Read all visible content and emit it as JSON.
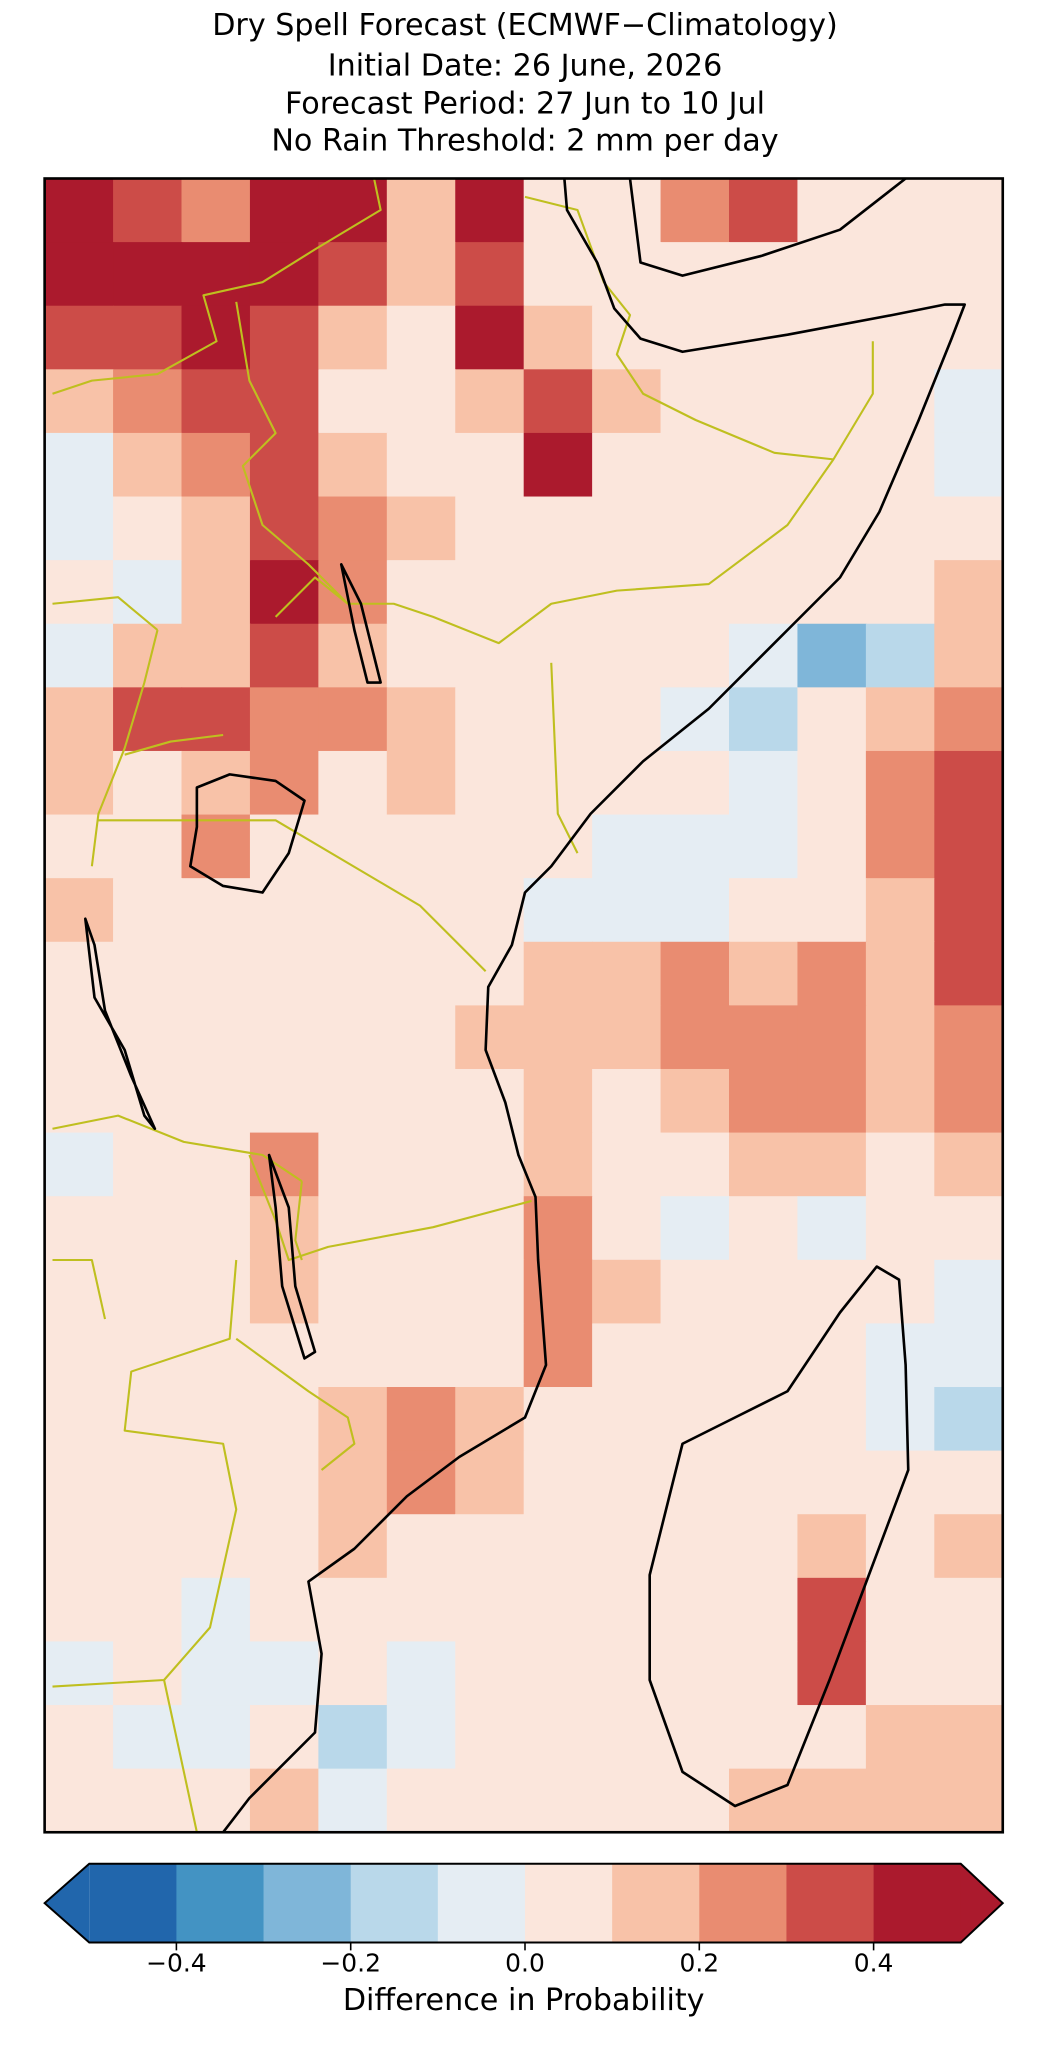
{
  "title": [
    "Dry Spell Forecast (ECMWF−Climatology)",
    "Initial Date: 26 June, 2026",
    "Forecast Period: 27 Jun to 10 Jul",
    "No Rain Threshold: 2 mm per day"
  ],
  "map": {
    "grid": [
      [
        0.45,
        0.35,
        0.25,
        0.45,
        0.45,
        0.15,
        0.45,
        0.05,
        0.05,
        0.25,
        0.35,
        0.05,
        0.05,
        0.05
      ],
      [
        0.45,
        0.45,
        0.45,
        0.45,
        0.35,
        0.15,
        0.35,
        0.05,
        0.05,
        0.05,
        0.05,
        0.05,
        0.05,
        0.05
      ],
      [
        0.35,
        0.35,
        0.45,
        0.35,
        0.15,
        0.05,
        0.45,
        0.15,
        0.05,
        0.05,
        0.05,
        0.05,
        0.05,
        0.05
      ],
      [
        0.15,
        0.25,
        0.35,
        0.35,
        0.05,
        0.05,
        0.15,
        0.35,
        0.15,
        0.05,
        0.05,
        0.05,
        0.05,
        -0.05
      ],
      [
        -0.05,
        0.15,
        0.25,
        0.35,
        0.15,
        0.05,
        0.05,
        0.45,
        0.05,
        0.05,
        0.05,
        0.05,
        0.05,
        -0.05
      ],
      [
        -0.05,
        0.05,
        0.15,
        0.35,
        0.25,
        0.15,
        0.05,
        0.05,
        0.05,
        0.05,
        0.05,
        0.05,
        0.05,
        0.05
      ],
      [
        0.05,
        -0.05,
        0.15,
        0.45,
        0.25,
        0.05,
        0.05,
        0.05,
        0.05,
        0.05,
        0.05,
        0.05,
        0.05,
        0.15
      ],
      [
        -0.05,
        0.15,
        0.15,
        0.35,
        0.15,
        0.05,
        0.05,
        0.05,
        0.05,
        0.05,
        -0.05,
        -0.25,
        -0.15,
        0.15
      ],
      [
        0.15,
        0.35,
        0.35,
        0.25,
        0.25,
        0.15,
        0.05,
        0.05,
        0.05,
        -0.05,
        -0.15,
        0.05,
        0.15,
        0.25
      ],
      [
        0.15,
        0.05,
        0.15,
        0.25,
        0.05,
        0.15,
        0.05,
        0.05,
        0.05,
        0.05,
        -0.05,
        0.05,
        0.25,
        0.35
      ],
      [
        0.05,
        0.05,
        0.25,
        0.05,
        0.05,
        0.05,
        0.05,
        0.05,
        -0.05,
        -0.05,
        -0.05,
        0.05,
        0.25,
        0.35
      ],
      [
        0.15,
        0.05,
        0.05,
        0.05,
        0.05,
        0.05,
        0.05,
        -0.05,
        -0.05,
        -0.05,
        0.05,
        0.05,
        0.15,
        0.35
      ],
      [
        0.05,
        0.05,
        0.05,
        0.05,
        0.05,
        0.05,
        0.05,
        0.15,
        0.15,
        0.25,
        0.15,
        0.25,
        0.15,
        0.35
      ],
      [
        0.05,
        0.05,
        0.05,
        0.05,
        0.05,
        0.05,
        0.15,
        0.15,
        0.15,
        0.25,
        0.25,
        0.25,
        0.15,
        0.25
      ],
      [
        0.05,
        0.05,
        0.05,
        0.05,
        0.05,
        0.05,
        0.05,
        0.15,
        0.05,
        0.15,
        0.25,
        0.25,
        0.15,
        0.25
      ],
      [
        -0.05,
        0.05,
        0.05,
        0.25,
        0.05,
        0.05,
        0.05,
        0.15,
        0.05,
        0.05,
        0.15,
        0.15,
        0.05,
        0.15
      ],
      [
        0.05,
        0.05,
        0.05,
        0.15,
        0.05,
        0.05,
        0.05,
        0.25,
        0.05,
        -0.05,
        0.05,
        -0.05,
        0.05,
        0.05
      ],
      [
        0.05,
        0.05,
        0.05,
        0.15,
        0.05,
        0.05,
        0.05,
        0.25,
        0.15,
        0.05,
        0.05,
        0.05,
        0.05,
        -0.05
      ],
      [
        0.05,
        0.05,
        0.05,
        0.05,
        0.05,
        0.05,
        0.05,
        0.25,
        0.05,
        0.05,
        0.05,
        0.05,
        -0.05,
        -0.05
      ],
      [
        0.05,
        0.05,
        0.05,
        0.05,
        0.15,
        0.25,
        0.15,
        0.05,
        0.05,
        0.05,
        0.05,
        0.05,
        -0.05,
        -0.15
      ],
      [
        0.05,
        0.05,
        0.05,
        0.05,
        0.15,
        0.25,
        0.15,
        0.05,
        0.05,
        0.05,
        0.05,
        0.05,
        0.05,
        0.05
      ],
      [
        0.05,
        0.05,
        0.05,
        0.05,
        0.15,
        0.05,
        0.05,
        0.05,
        0.05,
        0.05,
        0.05,
        0.15,
        0.05,
        0.15
      ],
      [
        0.05,
        0.05,
        -0.05,
        0.05,
        0.05,
        0.05,
        0.05,
        0.05,
        0.05,
        0.05,
        0.05,
        0.35,
        0.05,
        0.05
      ],
      [
        -0.05,
        0.05,
        -0.05,
        -0.05,
        0.05,
        -0.05,
        0.05,
        0.05,
        0.05,
        0.05,
        0.05,
        0.35,
        0.05,
        0.05
      ],
      [
        0.05,
        -0.05,
        -0.05,
        0.05,
        -0.15,
        -0.05,
        0.05,
        0.05,
        0.05,
        0.05,
        0.05,
        0.05,
        0.15,
        0.15
      ],
      [
        0.05,
        0.05,
        0.05,
        0.15,
        -0.05,
        0.05,
        0.05,
        0.05,
        0.05,
        0.05,
        0.15,
        0.15,
        0.15,
        0.15
      ]
    ],
    "colorbar": {
      "label": "Difference in Probability",
      "levels": [
        -0.5,
        -0.4,
        -0.3,
        -0.2,
        -0.1,
        0,
        0.1,
        0.2,
        0.3,
        0.4,
        0.5
      ],
      "colors": [
        "#2166ac",
        "#4393c3",
        "#7fb6d9",
        "#b9d8ea",
        "#e5edf3",
        "#fbe6dc",
        "#f8c2a8",
        "#e98c71",
        "#cc4c48",
        "#ab1a2d"
      ],
      "extend": "both",
      "ticks": [
        {
          "value": -0.4,
          "label": "−0.4"
        },
        {
          "value": -0.2,
          "label": "−0.2"
        },
        {
          "value": 0,
          "label": "0.0"
        },
        0.2,
        0.4
      ]
    }
  }
}
